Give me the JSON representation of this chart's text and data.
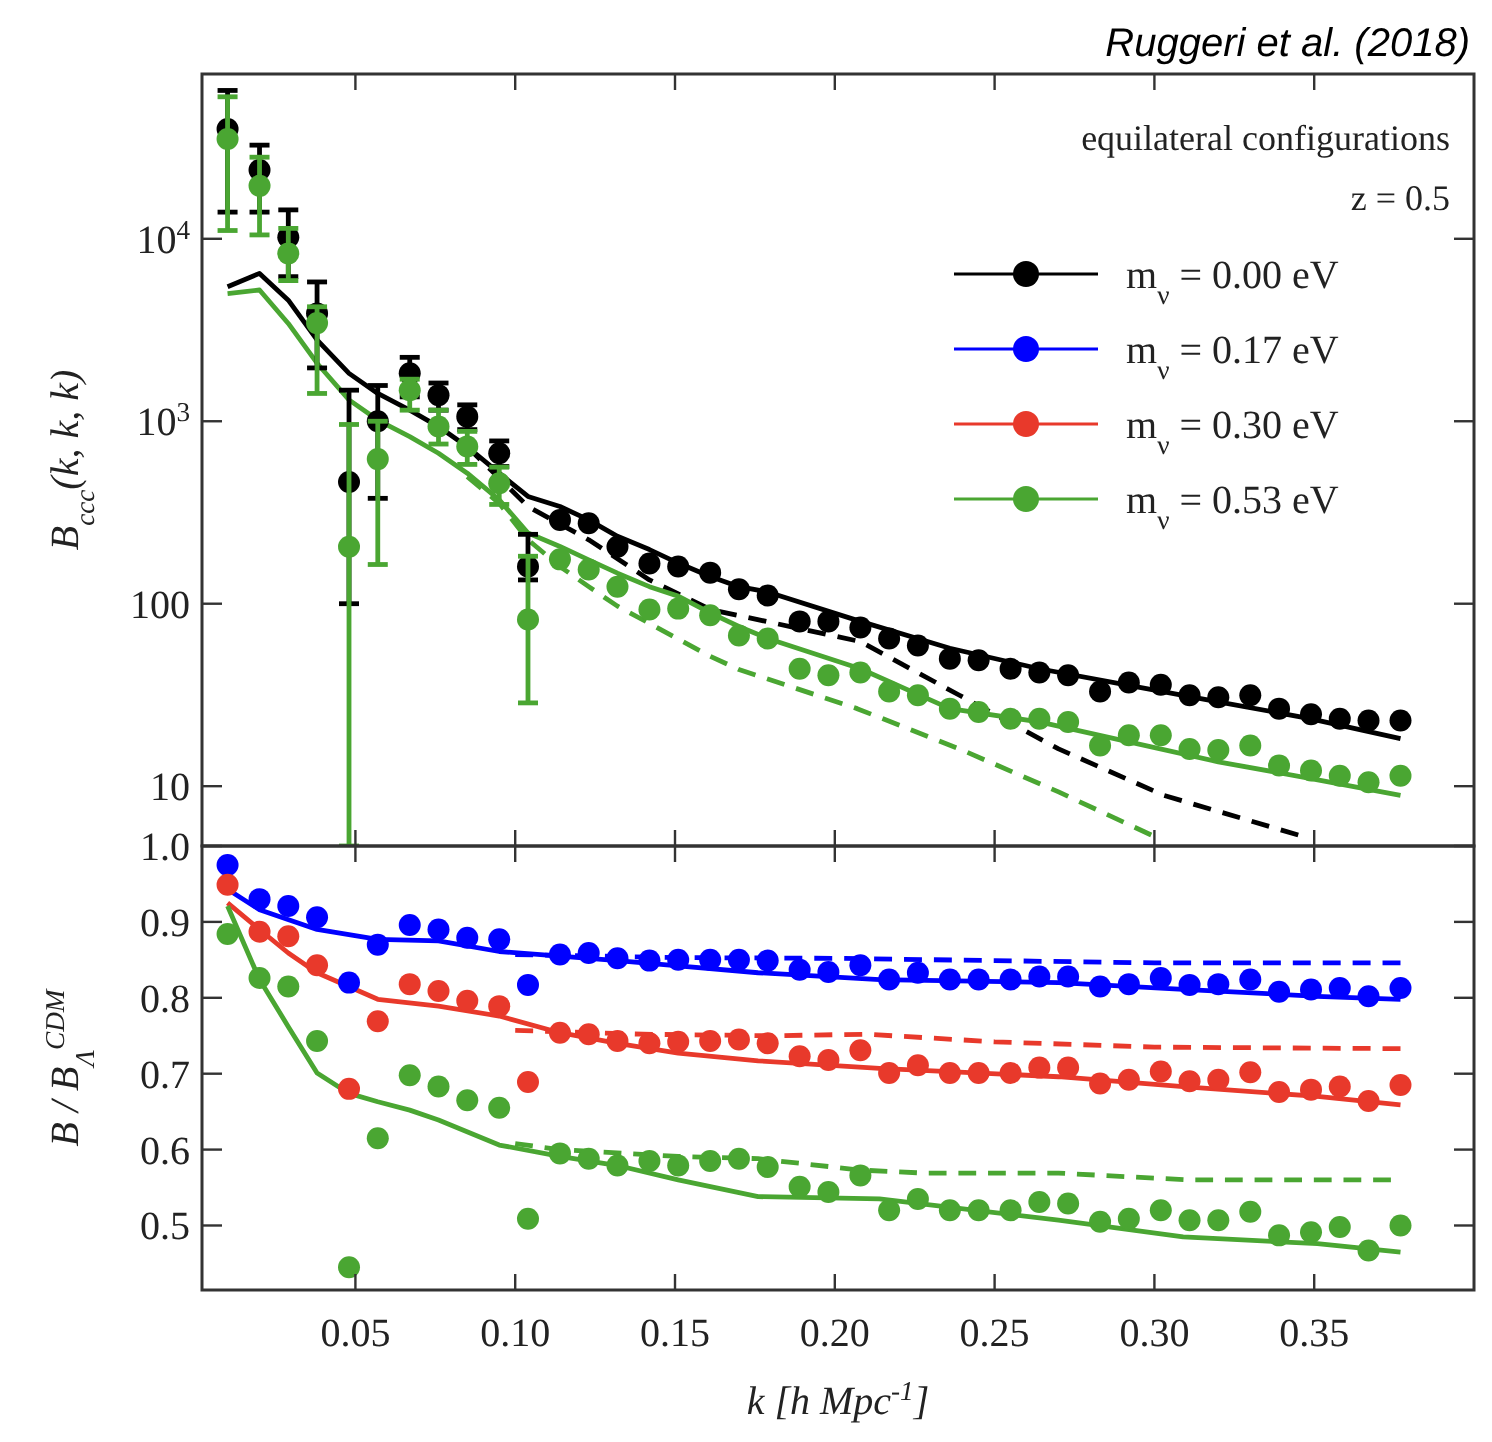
{
  "chart_data": [
    {
      "type": "scatter",
      "log": "y",
      "xlim": [
        0.002,
        0.4
      ],
      "ylim": [
        4.7,
        80000
      ],
      "tick_labels": "y",
      "ylabel": "B$_{ccc}$(k, k, k)",
      "legend": "top right",
      "xticks": [
        0.05,
        0.1,
        0.15,
        0.2,
        0.25,
        0.3,
        0.35
      ],
      "yticks": [
        10,
        100,
        {
          "value": 1000,
          "label": "10$^{3}$"
        },
        {
          "value": 10000,
          "label": "10$^{4}$"
        }
      ],
      "annotations": [
        "Ruggeri et al. (2018)",
        "equilateral configurations",
        "z = 0.5"
      ],
      "x": [
        0.01,
        0.02,
        0.029,
        0.038,
        0.048,
        0.057,
        0.067,
        0.076,
        0.085,
        0.095,
        0.104,
        0.114,
        0.123,
        0.132,
        0.142,
        0.151,
        0.161,
        0.17,
        0.179,
        0.189,
        0.198,
        0.208,
        0.217,
        0.226,
        0.236,
        0.245,
        0.255,
        0.264,
        0.273,
        0.283,
        0.292,
        0.302,
        0.311,
        0.32,
        0.33,
        0.339,
        0.349,
        0.358,
        0.367,
        0.377
      ],
      "series": [
        {
          "name": "m$_{ν}$ = 0.00 eV",
          "color": "#000000",
          "marker": "circle",
          "values": [
            40000,
            23800,
            10200,
            3900,
            465,
            1000,
            1830,
            1390,
            1060,
            668,
            160,
            288,
            276,
            205,
            166,
            160,
            148,
            120,
            111,
            80,
            80,
            74,
            64.5,
            59,
            50,
            49,
            44,
            42,
            40.5,
            33,
            37,
            36,
            31.5,
            30.7,
            31.5,
            26.6,
            24.8,
            23.4,
            22.9,
            22.9
          ],
          "errors": [
            [
              14000,
              65000
            ],
            [
              14000,
              32600
            ],
            [
              6200,
              14400
            ],
            [
              1960,
              5800
            ],
            [
              100,
              1480
            ],
            [
              378,
              1570
            ],
            [
              1360,
              2240
            ],
            [
              1150,
              1620
            ],
            [
              900,
              1230
            ],
            [
              565,
              780
            ],
            [
              135,
              240
            ],
            null,
            null,
            null,
            null,
            null,
            null,
            null,
            null,
            null,
            null,
            null,
            null,
            null,
            null,
            null,
            null,
            null,
            null,
            null,
            null,
            null,
            null,
            null,
            null,
            null,
            null,
            null,
            null,
            null
          ]
        },
        {
          "name": "m$_{ν}$ = 0.17 eV",
          "color": "#0000ff",
          "marker": "circle",
          "values": [
            null,
            null,
            null,
            null,
            null,
            null,
            null,
            null,
            null,
            null,
            null,
            null,
            null,
            null,
            null,
            null,
            null,
            null,
            null,
            null,
            null,
            null,
            null,
            null,
            null,
            null,
            null,
            null,
            null,
            null,
            null,
            null,
            null,
            null,
            null,
            null,
            null,
            null,
            null,
            null
          ]
        },
        {
          "name": "m$_{ν}$ = 0.30 eV",
          "color": "#e8392b",
          "marker": "circle",
          "values": [
            null,
            null,
            null,
            null,
            null,
            null,
            null,
            null,
            null,
            null,
            null,
            null,
            null,
            null,
            null,
            null,
            null,
            null,
            null,
            null,
            null,
            null,
            null,
            null,
            null,
            null,
            null,
            null,
            null,
            null,
            null,
            null,
            null,
            null,
            null,
            null,
            null,
            null,
            null,
            null
          ]
        },
        {
          "name": "m$_{ν}$ = 0.53 eV",
          "color": "#4aa632",
          "marker": "circle",
          "values": [
            35200,
            19500,
            8300,
            3450,
            205,
            620,
            1480,
            935,
            727,
            457,
            82,
            175,
            154,
            124,
            93,
            94,
            86.5,
            67,
            64.5,
            44,
            40.5,
            42,
            33,
            31.5,
            26.6,
            25.5,
            23.4,
            23.4,
            22.5,
            16.7,
            19,
            19,
            16,
            15.8,
            16.7,
            13,
            12.2,
            11.4,
            10.5,
            11.4
          ],
          "errors": [
            [
              11100,
              60000
            ],
            [
              10500,
              28000
            ],
            [
              5900,
              11400
            ],
            [
              1420,
              4240
            ],
            [
              4.7,
              960
            ],
            [
              164,
              1000
            ],
            [
              1150,
              1700
            ],
            [
              750,
              1150
            ],
            [
              580,
              880
            ],
            [
              350,
              560
            ],
            [
              28.6,
              182
            ],
            null,
            null,
            null,
            null,
            null,
            null,
            null,
            null,
            null,
            null,
            null,
            null,
            null,
            null,
            null,
            null,
            null,
            null,
            null,
            null,
            null,
            null,
            null,
            null,
            null,
            null,
            null,
            null,
            null
          ]
        },
        {
          "type": "line",
          "line_style": "solid",
          "marker": "none",
          "color": "#000000",
          "x": [
            0.01,
            0.02,
            0.029,
            0.038,
            0.048,
            0.057,
            0.067,
            0.076,
            0.085,
            0.095,
            0.104,
            0.114,
            0.123,
            0.132,
            0.142,
            0.151,
            0.161,
            0.17,
            0.179,
            0.208,
            0.236,
            0.264,
            0.292,
            0.32,
            0.349,
            0.377
          ],
          "values": [
            5460,
            6460,
            4610,
            2790,
            1830,
            1420,
            1150,
            935,
            725,
            519,
            387,
            341,
            288,
            234,
            198,
            167,
            141,
            124,
            116,
            80,
            57,
            44,
            35.7,
            29,
            23.4,
            18.2
          ]
        },
        {
          "type": "line",
          "line_style": "dashed",
          "marker": "none",
          "color": "#000000",
          "x": [
            0.085,
            0.104,
            0.123,
            0.142,
            0.161,
            0.208,
            0.239,
            0.27,
            0.303,
            0.345
          ],
          "values": [
            725,
            341,
            224,
            135,
            93,
            62,
            31.5,
            16,
            8.9,
            5.4
          ]
        },
        {
          "type": "line",
          "line_style": "solid",
          "marker": "none",
          "color": "#4aa632",
          "x": [
            0.01,
            0.02,
            0.029,
            0.038,
            0.048,
            0.057,
            0.067,
            0.076,
            0.085,
            0.095,
            0.104,
            0.114,
            0.123,
            0.132,
            0.142,
            0.151,
            0.161,
            0.17,
            0.179,
            0.208,
            0.236,
            0.264,
            0.292,
            0.32,
            0.349,
            0.377
          ],
          "values": [
            5010,
            5240,
            3435,
            2080,
            1310,
            1015,
            824,
            668,
            519,
            371,
            244,
            206,
            174,
            147,
            124,
            110,
            89,
            75,
            64.5,
            44,
            26.6,
            22.5,
            17.5,
            13.6,
            11,
            8.9
          ]
        },
        {
          "type": "line",
          "line_style": "dashed",
          "marker": "none",
          "color": "#4aa632",
          "x": [
            0.085,
            0.095,
            0.104,
            0.114,
            0.123,
            0.132,
            0.142,
            0.151,
            0.161,
            0.17,
            0.207,
            0.239,
            0.27,
            0.299
          ],
          "values": [
            497,
            355,
            224,
            160,
            124,
            97,
            78,
            64,
            51.5,
            43.6,
            26.6,
            16,
            9.3,
            5.4
          ]
        }
      ]
    },
    {
      "type": "scatter",
      "xlim": [
        0.002,
        0.4
      ],
      "ylim": [
        0.415,
        1.0
      ],
      "xlabel": "k [h Mpc$^{-1}$]",
      "ylabel": "B / B$_{Λ}$$^{CDM}$",
      "xticks": [
        0.05,
        {
          "value": 0.1,
          "label": "0.10"
        },
        0.15,
        {
          "value": 0.2,
          "label": "0.20"
        },
        0.25,
        {
          "value": 0.3,
          "label": "0.30"
        },
        0.35
      ],
      "yticks": [
        0.5,
        0.6,
        0.7,
        0.8,
        0.9,
        {
          "value": 1,
          "label": "1.0"
        }
      ],
      "x": [
        0.01,
        0.02,
        0.029,
        0.038,
        0.048,
        0.057,
        0.067,
        0.076,
        0.085,
        0.095,
        0.104,
        0.114,
        0.123,
        0.132,
        0.142,
        0.151,
        0.161,
        0.17,
        0.179,
        0.189,
        0.198,
        0.208,
        0.217,
        0.226,
        0.236,
        0.245,
        0.255,
        0.264,
        0.273,
        0.283,
        0.292,
        0.302,
        0.311,
        0.32,
        0.33,
        0.339,
        0.349,
        0.358,
        0.367,
        0.377
      ],
      "series": [
        {
          "type": "line",
          "line_style": "solid",
          "marker": "none",
          "color": "#0000ff",
          "x": [
            0.01,
            0.02,
            0.038,
            0.057,
            0.076,
            0.095,
            0.114,
            0.132,
            0.151,
            0.176,
            0.214,
            0.27,
            0.309,
            0.351,
            0.377
          ],
          "values": [
            0.943,
            0.916,
            0.89,
            0.877,
            0.875,
            0.861,
            0.855,
            0.849,
            0.842,
            0.833,
            0.824,
            0.82,
            0.811,
            0.802,
            0.798
          ]
        },
        {
          "type": "line",
          "line_style": "dashed",
          "marker": "none",
          "color": "#0000ff",
          "x": [
            0.1,
            0.15,
            0.2,
            0.25,
            0.3,
            0.377
          ],
          "values": [
            0.857,
            0.853,
            0.852,
            0.849,
            0.846,
            0.846
          ]
        },
        {
          "type": "line",
          "line_style": "solid",
          "marker": "none",
          "color": "#e8392b",
          "x": [
            0.01,
            0.02,
            0.029,
            0.038,
            0.057,
            0.076,
            0.095,
            0.114,
            0.132,
            0.151,
            0.176,
            0.214,
            0.27,
            0.309,
            0.351,
            0.377
          ],
          "values": [
            0.925,
            0.89,
            0.859,
            0.833,
            0.798,
            0.789,
            0.776,
            0.754,
            0.74,
            0.727,
            0.717,
            0.707,
            0.696,
            0.683,
            0.67,
            0.659
          ]
        },
        {
          "type": "line",
          "line_style": "dashed",
          "marker": "none",
          "color": "#e8392b",
          "x": [
            0.1,
            0.14,
            0.18,
            0.21,
            0.25,
            0.3,
            0.377
          ],
          "values": [
            0.757,
            0.752,
            0.75,
            0.752,
            0.742,
            0.735,
            0.733
          ]
        },
        {
          "type": "line",
          "line_style": "solid",
          "marker": "none",
          "color": "#4aa632",
          "x": [
            0.01,
            0.02,
            0.029,
            0.038,
            0.048,
            0.057,
            0.067,
            0.076,
            0.095,
            0.114,
            0.132,
            0.151,
            0.176,
            0.214,
            0.27,
            0.309,
            0.351,
            0.377
          ],
          "values": [
            0.921,
            0.824,
            0.762,
            0.701,
            0.674,
            0.663,
            0.652,
            0.639,
            0.606,
            0.591,
            0.579,
            0.56,
            0.538,
            0.535,
            0.507,
            0.485,
            0.476,
            0.465
          ]
        },
        {
          "type": "line",
          "line_style": "dashed",
          "marker": "none",
          "color": "#4aa632",
          "x": [
            0.1,
            0.114,
            0.151,
            0.176,
            0.208,
            0.228,
            0.27,
            0.311,
            0.374
          ],
          "values": [
            0.608,
            0.6,
            0.591,
            0.588,
            0.573,
            0.569,
            0.569,
            0.56,
            0.56
          ]
        },
        {
          "color": "#0000ff",
          "marker": "circle",
          "values": [
            0.975,
            0.93,
            0.921,
            0.906,
            0.82,
            0.87,
            0.896,
            0.89,
            0.879,
            0.877,
            0.817,
            0.857,
            0.859,
            0.852,
            0.849,
            0.85,
            0.85,
            0.85,
            0.849,
            0.837,
            0.834,
            0.843,
            0.824,
            0.833,
            0.824,
            0.824,
            0.824,
            0.828,
            0.828,
            0.815,
            0.818,
            0.826,
            0.817,
            0.818,
            0.824,
            0.808,
            0.811,
            0.813,
            0.802,
            0.813
          ]
        },
        {
          "color": "#e8392b",
          "marker": "circle",
          "values": [
            0.949,
            0.887,
            0.881,
            0.843,
            0.68,
            0.769,
            0.818,
            0.809,
            0.796,
            0.789,
            0.689,
            0.754,
            0.752,
            0.743,
            0.74,
            0.742,
            0.743,
            0.745,
            0.74,
            0.723,
            0.718,
            0.731,
            0.701,
            0.711,
            0.701,
            0.701,
            0.701,
            0.708,
            0.708,
            0.687,
            0.692,
            0.703,
            0.69,
            0.692,
            0.702,
            0.676,
            0.679,
            0.683,
            0.664,
            0.685
          ]
        },
        {
          "color": "#4aa632",
          "marker": "circle",
          "values": [
            0.884,
            0.826,
            0.815,
            0.743,
            0.445,
            0.615,
            0.698,
            0.683,
            0.665,
            0.655,
            0.509,
            0.595,
            0.588,
            0.579,
            0.585,
            0.579,
            0.585,
            0.588,
            0.577,
            0.551,
            0.544,
            0.566,
            0.52,
            0.535,
            0.52,
            0.52,
            0.52,
            0.531,
            0.529,
            0.505,
            0.509,
            0.52,
            0.507,
            0.507,
            0.518,
            0.487,
            0.491,
            0.498,
            0.467,
            0.5
          ]
        }
      ]
    }
  ]
}
